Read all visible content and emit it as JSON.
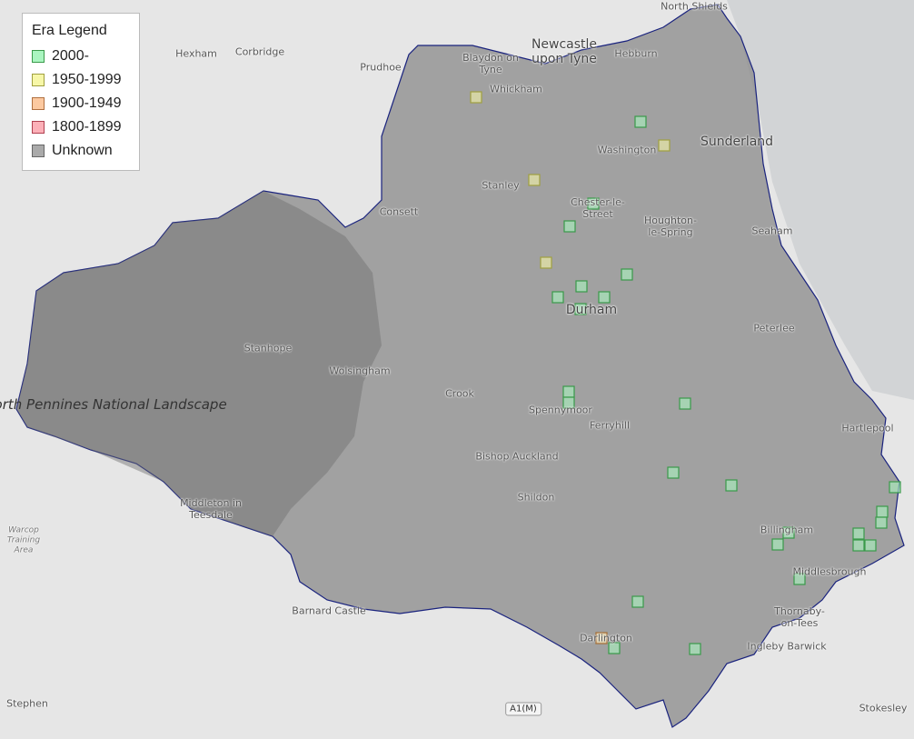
{
  "legend": {
    "title": "Era Legend",
    "items": [
      {
        "label": "2000-",
        "fill": "#aaf5c0",
        "stroke": "#3a9a4a"
      },
      {
        "label": "1950-1999",
        "fill": "#f7f7a8",
        "stroke": "#a0a040"
      },
      {
        "label": "1900-1949",
        "fill": "#fcc9a0",
        "stroke": "#b07040"
      },
      {
        "label": "1800-1899",
        "fill": "#fcb0b8",
        "stroke": "#b04050"
      },
      {
        "label": "Unknown",
        "fill": "#aaaaaa",
        "stroke": "#666666"
      }
    ]
  },
  "colors": {
    "boundary": "#1a237e",
    "region": "#8a8a8a",
    "background": "#e6e6e6"
  },
  "places": [
    "North Shields",
    "Newcastle upon Tyne",
    "Hexham",
    "Corbridge",
    "Prudhoe",
    "Blaydon on Tyne",
    "Hebburn",
    "Whickham",
    "Washington",
    "Sunderland",
    "Stanley",
    "Chester-le-Street",
    "Consett",
    "Houghton-le-Spring",
    "Seaham",
    "Durham",
    "Peterlee",
    "Stanhope",
    "Wolsingham",
    "Crook",
    "Spennymoor",
    "Ferryhill",
    "Hartlepool",
    "Bishop Auckland",
    "Shildon",
    "Middleton in Teesdale",
    "Billingham",
    "Middlesbrough",
    "Thornaby-on-Tees",
    "Barnard Castle",
    "Darlington",
    "Ingleby Barwick",
    "Stokesley",
    "Stephen"
  ],
  "park_label": "North Pennines National Landscape",
  "small_label": "Warcop Training Area",
  "road_label": "A1(M)",
  "markers": [
    "1950-1999",
    "1950-1999",
    "1950-1999",
    "1950-1999",
    "2000-",
    "2000-",
    "2000-",
    "2000-",
    "2000-",
    "2000-",
    "2000-",
    "2000-",
    "2000-",
    "2000-",
    "2000-",
    "2000-",
    "2000-",
    "2000-",
    "2000-",
    "2000-",
    "2000-",
    "2000-",
    "2000-",
    "2000-",
    "2000-",
    "2000-",
    "2000-",
    "2000-",
    "2000-",
    "2000-",
    "1900-1949"
  ]
}
